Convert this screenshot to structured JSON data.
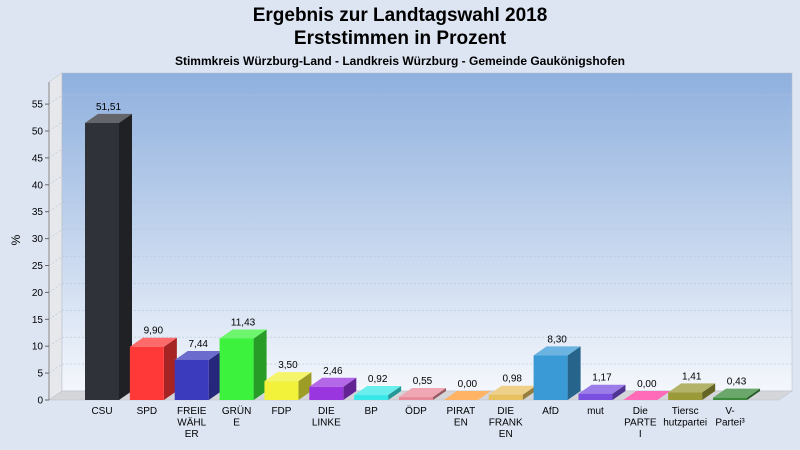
{
  "chart_data": {
    "type": "bar",
    "title": "Ergebnis zur Landtagswahl 2018",
    "subtitle": "Erststimmen in Prozent",
    "subsubtitle": "Stimmkreis Würzburg-Land - Landkreis Würzburg - Gemeinde Gaukönigshofen",
    "ylabel": "%",
    "ylim": [
      0,
      58
    ],
    "yticks": [
      "0",
      "5",
      "10",
      "15",
      "20",
      "25",
      "30",
      "35",
      "40",
      "45",
      "50",
      "55"
    ],
    "grid": true,
    "categories": [
      [
        "CSU"
      ],
      [
        "SPD"
      ],
      [
        "FREIE",
        "WÄHL",
        "ER"
      ],
      [
        "GRÜN",
        "E"
      ],
      [
        "FDP"
      ],
      [
        "DIE",
        "LINKE"
      ],
      [
        "BP"
      ],
      [
        "ÖDP"
      ],
      [
        "PIRAT",
        "EN"
      ],
      [
        "DIE",
        "FRANK",
        "EN"
      ],
      [
        "AfD"
      ],
      [
        "mut"
      ],
      [
        "Die",
        "PARTE",
        "I"
      ],
      [
        "Tiersc",
        "hutzpartei"
      ],
      [
        "V-",
        "Partei³"
      ]
    ],
    "values": [
      51.51,
      9.9,
      7.44,
      11.43,
      3.5,
      2.46,
      0.92,
      0.55,
      0.0,
      0.98,
      8.3,
      1.17,
      0.0,
      1.41,
      0.43
    ],
    "value_labels": [
      "51,51",
      "9,90",
      "7,44",
      "11,43",
      "3,50",
      "2,46",
      "0,92",
      "0,55",
      "0,00",
      "0,98",
      "8,30",
      "1,17",
      "0,00",
      "1,41",
      "0,43"
    ],
    "colors": [
      "#2f3238",
      "#ff3838",
      "#3b3bbd",
      "#3cf23c",
      "#f2f23a",
      "#9a36e0",
      "#38e8e8",
      "#e88a9a",
      "#ff9a30",
      "#e8c060",
      "#3a9ad6",
      "#7a50e0",
      "#ff3aa0",
      "#9a9a38",
      "#3a8a3a"
    ]
  }
}
